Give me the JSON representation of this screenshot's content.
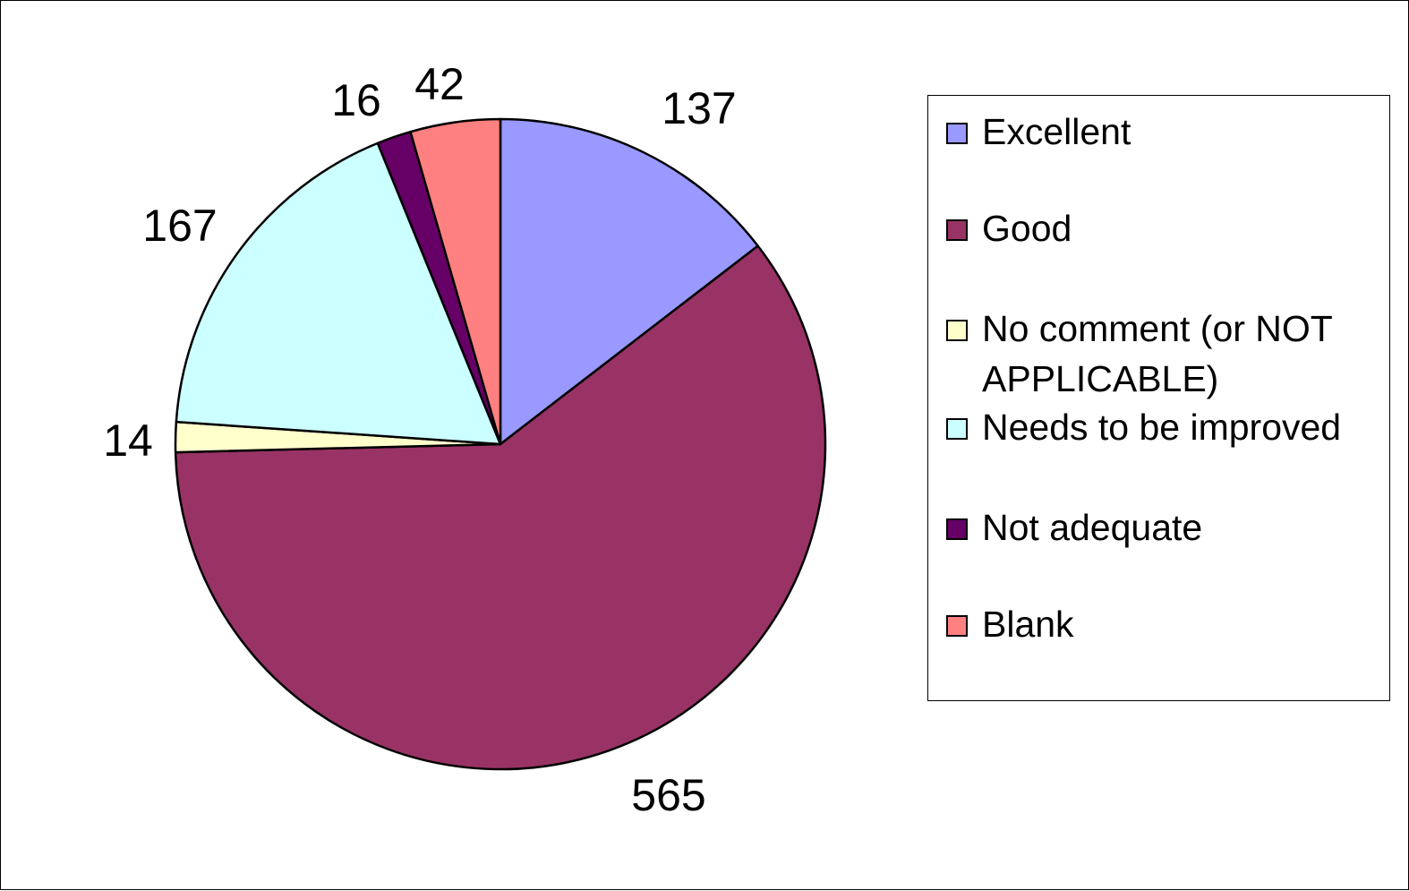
{
  "chart_data": {
    "type": "pie",
    "title": "",
    "categories": [
      "Excellent",
      "Good",
      "No comment (or NOT APPLICABLE)",
      "Needs to be improved",
      "Not adequate",
      "Blank"
    ],
    "values": [
      137,
      565,
      14,
      167,
      16,
      42
    ],
    "colors": [
      "#9999FF",
      "#993366",
      "#FFFFCC",
      "#CCFFFF",
      "#660066",
      "#FF8080"
    ],
    "data_labels": [
      "137",
      "565",
      "14",
      "167",
      "16",
      "42"
    ],
    "legend": {
      "placement": "right",
      "entries": [
        "Excellent",
        "Good",
        "No comment (or NOT APPLICABLE)",
        "Needs to be improved",
        "Not adequate",
        "Blank"
      ]
    }
  }
}
